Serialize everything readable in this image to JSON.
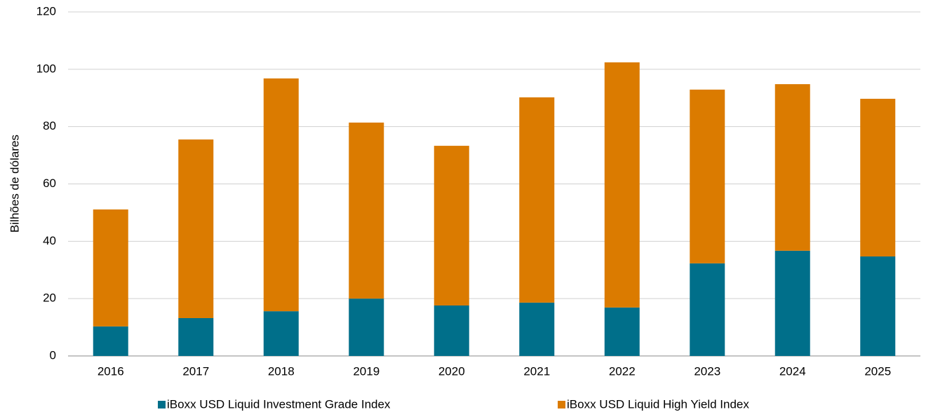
{
  "chart_data": {
    "type": "bar",
    "stacked": true,
    "y_label": "Bilhões de dólares",
    "categories": [
      "2016",
      "2017",
      "2018",
      "2019",
      "2020",
      "2021",
      "2022",
      "2023",
      "2024",
      "2025"
    ],
    "series": [
      {
        "name": "iBoxx USD Liquid Investment Grade Index",
        "color": "#006f8a",
        "values": [
          10.3,
          13.2,
          15.6,
          20.0,
          17.6,
          18.6,
          16.9,
          32.3,
          36.7,
          34.7
        ]
      },
      {
        "name": "iBoxx USD Liquid High Yield Index",
        "color": "#db7b00",
        "values": [
          40.8,
          62.3,
          81.2,
          61.4,
          55.7,
          71.6,
          85.5,
          60.6,
          58.1,
          55.0
        ]
      }
    ],
    "ylim": [
      0,
      120
    ],
    "yticks": [
      0,
      20,
      40,
      60,
      80,
      100,
      120
    ],
    "grid": true,
    "legend": "bottom"
  }
}
